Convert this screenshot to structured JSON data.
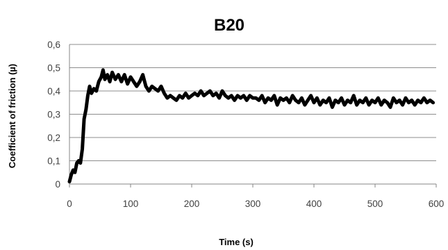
{
  "chart_data": {
    "type": "line",
    "title": "B20",
    "xlabel": "Time (s)",
    "ylabel": "Coefficient of friction (µ)",
    "xlim": [
      0,
      600
    ],
    "ylim": [
      0,
      0.6
    ],
    "x_ticks": [
      "0",
      "100",
      "200",
      "300",
      "400",
      "500",
      "600"
    ],
    "y_ticks": [
      "0",
      "0,1",
      "0,2",
      "0,3",
      "0,4",
      "0,5",
      "0,6"
    ],
    "grid": "horizontal",
    "legend": "none",
    "line_color": "#000000",
    "series": [
      {
        "x": [
          0,
          3,
          6,
          9,
          12,
          15,
          18,
          21,
          24,
          27,
          30,
          33,
          36,
          40,
          44,
          48,
          52,
          55,
          58,
          62,
          66,
          70,
          75,
          80,
          85,
          90,
          95,
          100,
          105,
          110,
          115,
          120,
          125,
          130,
          135,
          140,
          145,
          150,
          155,
          160,
          165,
          170,
          175,
          180,
          185,
          190,
          195,
          200,
          205,
          210,
          215,
          220,
          225,
          230,
          235,
          240,
          245,
          250,
          255,
          260,
          265,
          270,
          275,
          280,
          285,
          290,
          295,
          300,
          305,
          310,
          315,
          320,
          325,
          330,
          335,
          340,
          345,
          350,
          355,
          360,
          365,
          370,
          375,
          380,
          385,
          390,
          395,
          400,
          405,
          410,
          415,
          420,
          425,
          430,
          435,
          440,
          445,
          450,
          455,
          460,
          465,
          470,
          475,
          480,
          485,
          490,
          495,
          500,
          505,
          510,
          515,
          520,
          525,
          530,
          535,
          540,
          545,
          550,
          555,
          560,
          565,
          570,
          575,
          580,
          585,
          590,
          595
        ],
        "y": [
          0.01,
          0.04,
          0.06,
          0.05,
          0.09,
          0.1,
          0.09,
          0.15,
          0.28,
          0.32,
          0.38,
          0.42,
          0.39,
          0.41,
          0.4,
          0.44,
          0.46,
          0.49,
          0.45,
          0.47,
          0.44,
          0.48,
          0.45,
          0.47,
          0.44,
          0.47,
          0.43,
          0.46,
          0.44,
          0.42,
          0.44,
          0.47,
          0.42,
          0.4,
          0.42,
          0.41,
          0.4,
          0.42,
          0.39,
          0.37,
          0.38,
          0.37,
          0.36,
          0.38,
          0.37,
          0.39,
          0.37,
          0.38,
          0.39,
          0.38,
          0.4,
          0.38,
          0.39,
          0.4,
          0.38,
          0.39,
          0.37,
          0.4,
          0.38,
          0.37,
          0.38,
          0.36,
          0.38,
          0.37,
          0.38,
          0.36,
          0.38,
          0.37,
          0.37,
          0.36,
          0.38,
          0.35,
          0.37,
          0.36,
          0.38,
          0.34,
          0.37,
          0.36,
          0.37,
          0.35,
          0.38,
          0.36,
          0.35,
          0.37,
          0.34,
          0.36,
          0.38,
          0.35,
          0.37,
          0.34,
          0.36,
          0.35,
          0.37,
          0.33,
          0.36,
          0.35,
          0.37,
          0.34,
          0.36,
          0.35,
          0.38,
          0.34,
          0.36,
          0.35,
          0.37,
          0.34,
          0.36,
          0.35,
          0.37,
          0.34,
          0.36,
          0.35,
          0.33,
          0.37,
          0.35,
          0.36,
          0.34,
          0.37,
          0.35,
          0.36,
          0.34,
          0.36,
          0.35,
          0.37,
          0.35,
          0.36,
          0.35
        ]
      }
    ]
  }
}
